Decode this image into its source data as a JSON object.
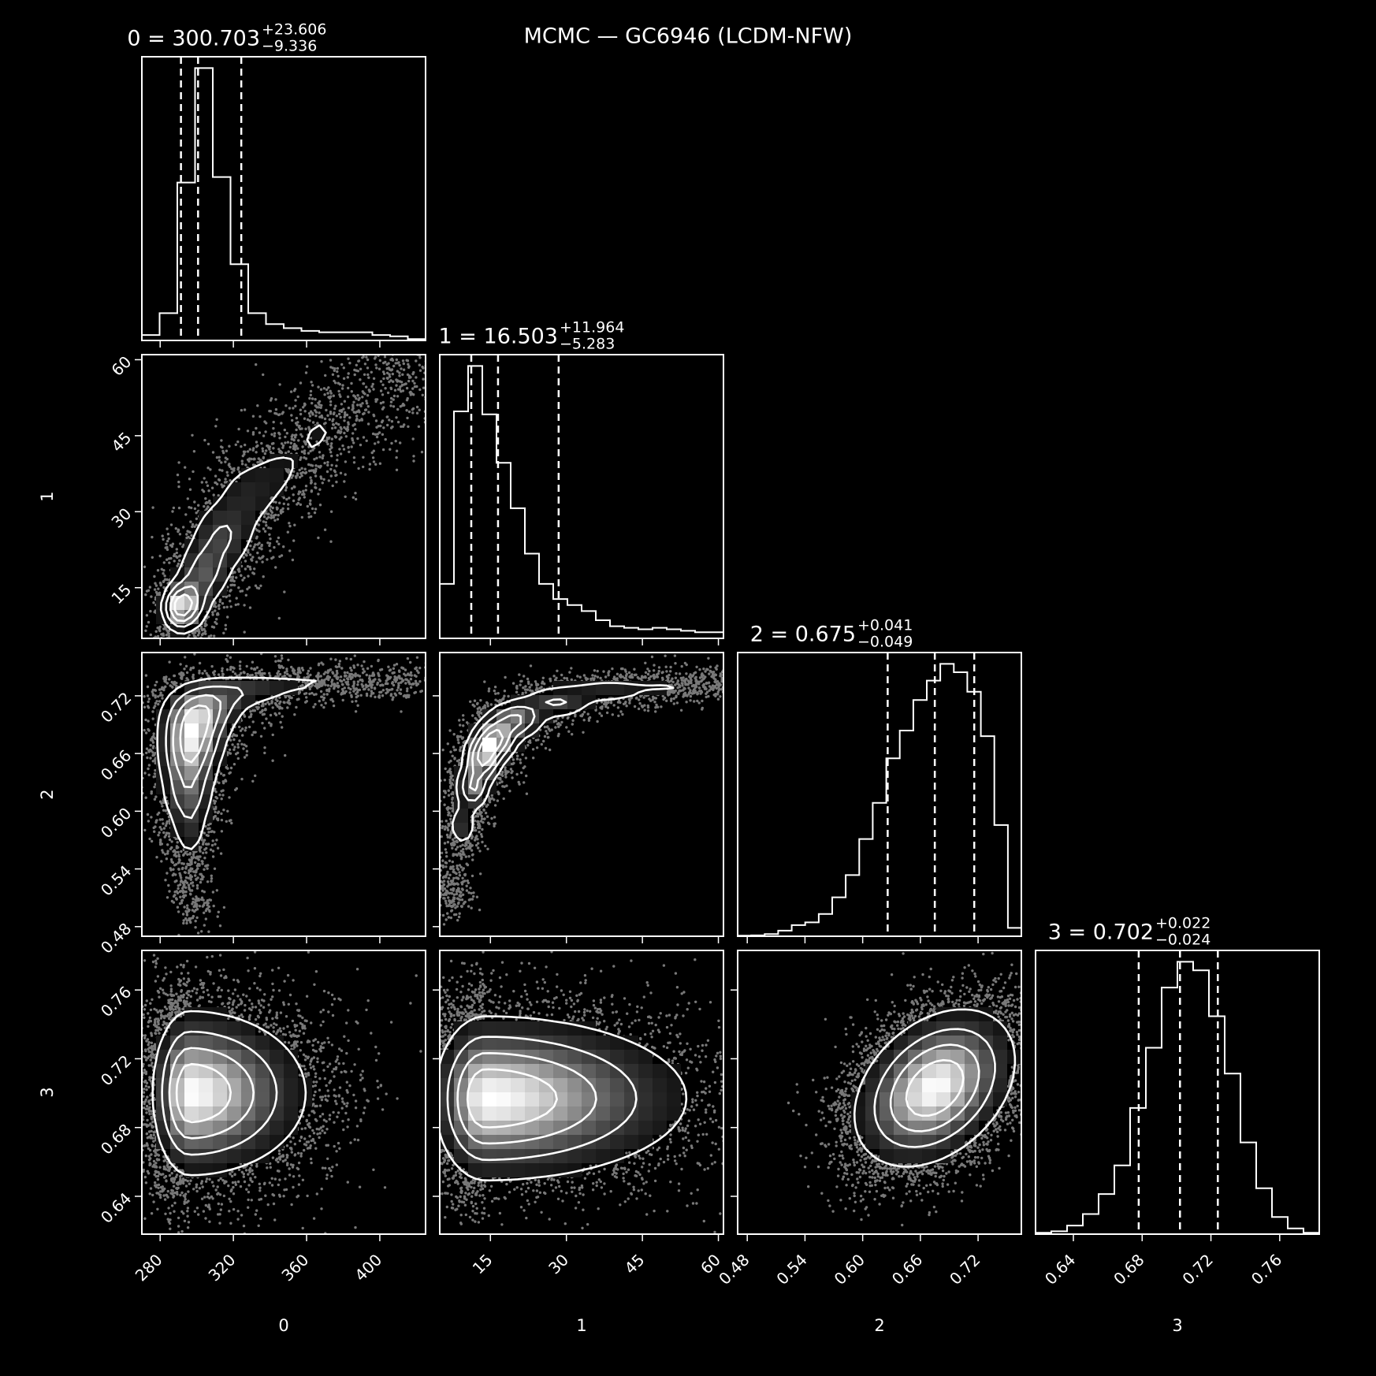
{
  "figure": {
    "title": "MCMC — GC6946 (LCDM-NFW)",
    "background": "#000000",
    "foreground": "#ffffff"
  },
  "chart_data": {
    "type": "corner",
    "title": "MCMC — GC6946 (LCDM-NFW)",
    "parameters": [
      {
        "name": "0",
        "median": "300.703",
        "plus": "+23.606",
        "minus": "−9.336",
        "quantiles": [
          291.367,
          300.703,
          324.309
        ],
        "range": [
          270,
          425
        ],
        "ticks": [
          280,
          320,
          360,
          400
        ],
        "tick_labels": [
          "280",
          "320",
          "360",
          "400"
        ],
        "hist": [
          0.02,
          0.1,
          0.58,
          1.0,
          0.6,
          0.28,
          0.1,
          0.06,
          0.045,
          0.035,
          0.03,
          0.03,
          0.03,
          0.02,
          0.015,
          0.005
        ]
      },
      {
        "name": "1",
        "median": "16.503",
        "plus": "+11.964",
        "minus": "−5.283",
        "quantiles": [
          11.22,
          16.503,
          28.467
        ],
        "range": [
          5,
          61
        ],
        "ticks": [
          15,
          30,
          45,
          60
        ],
        "tick_labels": [
          "15",
          "30",
          "45",
          "60"
        ],
        "hist": [
          0.18,
          0.75,
          0.9,
          0.74,
          0.58,
          0.43,
          0.28,
          0.18,
          0.13,
          0.11,
          0.09,
          0.06,
          0.04,
          0.035,
          0.03,
          0.035,
          0.03,
          0.025,
          0.02,
          0.02
        ]
      },
      {
        "name": "2",
        "median": "0.675",
        "plus": "+0.041",
        "minus": "−0.049",
        "quantiles": [
          0.626,
          0.675,
          0.716
        ],
        "range": [
          0.47,
          0.765
        ],
        "ticks": [
          0.48,
          0.54,
          0.6,
          0.66,
          0.72
        ],
        "tick_labels": [
          "0.48",
          "0.54",
          "0.60",
          "0.66",
          "0.72"
        ],
        "hist": [
          0.002,
          0.003,
          0.008,
          0.02,
          0.04,
          0.05,
          0.08,
          0.14,
          0.22,
          0.35,
          0.48,
          0.64,
          0.74,
          0.85,
          0.92,
          0.98,
          0.95,
          0.88,
          0.72,
          0.4,
          0.03
        ]
      },
      {
        "name": "3",
        "median": "0.702",
        "plus": "+0.022",
        "minus": "−0.024",
        "quantiles": [
          0.678,
          0.702,
          0.724
        ],
        "range": [
          0.618,
          0.783
        ],
        "ticks": [
          0.64,
          0.68,
          0.72,
          0.76
        ],
        "tick_labels": [
          "0.64",
          "0.68",
          "0.72",
          "0.76"
        ],
        "hist": [
          0.005,
          0.01,
          0.03,
          0.07,
          0.14,
          0.24,
          0.44,
          0.65,
          0.86,
          0.95,
          0.92,
          0.76,
          0.56,
          0.32,
          0.16,
          0.06,
          0.02,
          0.005
        ]
      }
    ],
    "panels_2d": [
      {
        "x": "0",
        "y": "1",
        "shape": "curve",
        "path": [
          [
            290,
            11
          ],
          [
            296,
            12
          ],
          [
            304,
            18
          ],
          [
            314,
            25
          ],
          [
            327,
            33
          ],
          [
            345,
            38
          ],
          [
            365,
            45
          ],
          [
            385,
            51
          ],
          [
            405,
            56
          ],
          [
            420,
            60
          ]
        ],
        "spread": [
          [
            5,
            2.5
          ],
          [
            6,
            3
          ],
          [
            8,
            3.5
          ],
          [
            10,
            4
          ],
          [
            11,
            4.5
          ],
          [
            11,
            4.5
          ],
          [
            11,
            5
          ],
          [
            11,
            5
          ],
          [
            10,
            5
          ],
          [
            8,
            5
          ]
        ],
        "weights": [
          10,
          8,
          6,
          5,
          3,
          2,
          2,
          1.5,
          1,
          0.5
        ],
        "contour_steps": 5
      },
      {
        "x": "0",
        "y": "2",
        "shape": "curve",
        "path": [
          [
            298,
            0.52
          ],
          [
            296,
            0.58
          ],
          [
            295,
            0.62
          ],
          [
            296,
            0.66
          ],
          [
            299,
            0.69
          ],
          [
            306,
            0.71
          ],
          [
            325,
            0.725
          ],
          [
            355,
            0.733
          ],
          [
            390,
            0.735
          ],
          [
            420,
            0.733
          ]
        ],
        "spread": [
          [
            5,
            0.018
          ],
          [
            6,
            0.02
          ],
          [
            8,
            0.02
          ],
          [
            9,
            0.02
          ],
          [
            10,
            0.018
          ],
          [
            12,
            0.014
          ],
          [
            16,
            0.01
          ],
          [
            18,
            0.008
          ],
          [
            18,
            0.008
          ],
          [
            14,
            0.008
          ]
        ],
        "weights": [
          1,
          2.5,
          5,
          8,
          8,
          5,
          3,
          1.5,
          1,
          0.6
        ],
        "contour_steps": 4
      },
      {
        "x": "1",
        "y": "2",
        "shape": "curve",
        "path": [
          [
            7.5,
            0.52
          ],
          [
            9.5,
            0.585
          ],
          [
            11.5,
            0.625
          ],
          [
            13.5,
            0.655
          ],
          [
            16,
            0.675
          ],
          [
            20,
            0.695
          ],
          [
            28,
            0.713
          ],
          [
            38,
            0.725
          ],
          [
            50,
            0.731
          ],
          [
            60,
            0.734
          ]
        ],
        "spread": [
          [
            1.5,
            0.012
          ],
          [
            1.6,
            0.013
          ],
          [
            1.8,
            0.013
          ],
          [
            2,
            0.013
          ],
          [
            2.3,
            0.012
          ],
          [
            3,
            0.011
          ],
          [
            4,
            0.01
          ],
          [
            5,
            0.008
          ],
          [
            5,
            0.008
          ],
          [
            4,
            0.008
          ]
        ],
        "weights": [
          1,
          2.5,
          5,
          7,
          7,
          5,
          3,
          2,
          1.2,
          0.8
        ],
        "contour_steps": 5
      },
      {
        "x": "0",
        "y": "3",
        "shape": "skewed",
        "center": [
          296,
          0.7
        ],
        "sx_left": 10,
        "sx_right": 32,
        "sy": 0.024,
        "contour_steps": 4
      },
      {
        "x": "1",
        "y": "3",
        "shape": "skewed",
        "center": [
          14,
          0.697
        ],
        "sx_left": 5,
        "sx_right": 20,
        "sy": 0.024,
        "contour_steps": 5
      },
      {
        "x": "2",
        "y": "3",
        "shape": "gaussian",
        "center": [
          0.675,
          0.703
        ],
        "sx": 0.042,
        "sy": 0.023,
        "rho": 0.35,
        "contour_steps": 4
      }
    ],
    "quantile_levels": [
      0.16,
      0.5,
      0.84
    ],
    "grid": false,
    "legend": "none"
  }
}
